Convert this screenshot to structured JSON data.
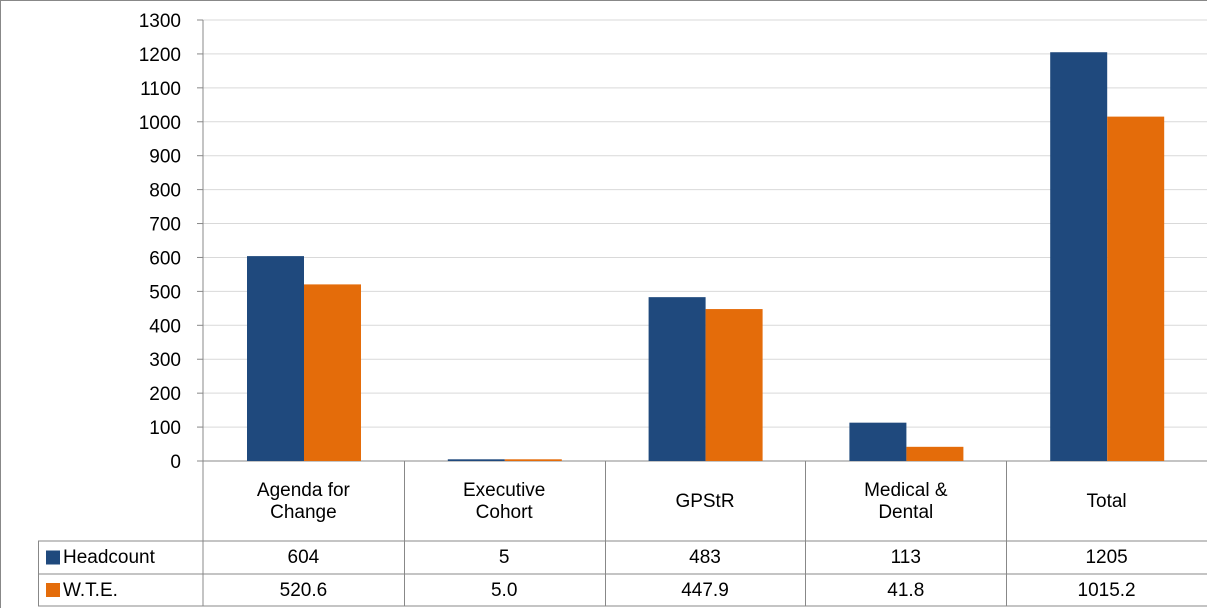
{
  "chart_data": {
    "type": "bar",
    "categories": [
      "Agenda for Change",
      "Executive Cohort",
      "GPStR",
      "Medical & Dental",
      "Total"
    ],
    "series": [
      {
        "name": "Headcount",
        "color": "#1f497d",
        "values": [
          604,
          5,
          483,
          113,
          1205
        ]
      },
      {
        "name": "W.T.E.",
        "color": "#e46c0a",
        "values": [
          520.6,
          5,
          447.9,
          41.8,
          1015.2
        ],
        "value_labels": [
          "520.6",
          "5.0",
          "447.9",
          "41.8",
          "1015.2"
        ]
      }
    ],
    "ylim": [
      0,
      1300
    ],
    "yticks": [
      0,
      100,
      200,
      300,
      400,
      500,
      600,
      700,
      800,
      900,
      1000,
      1100,
      1200,
      1300
    ],
    "grid": true
  }
}
